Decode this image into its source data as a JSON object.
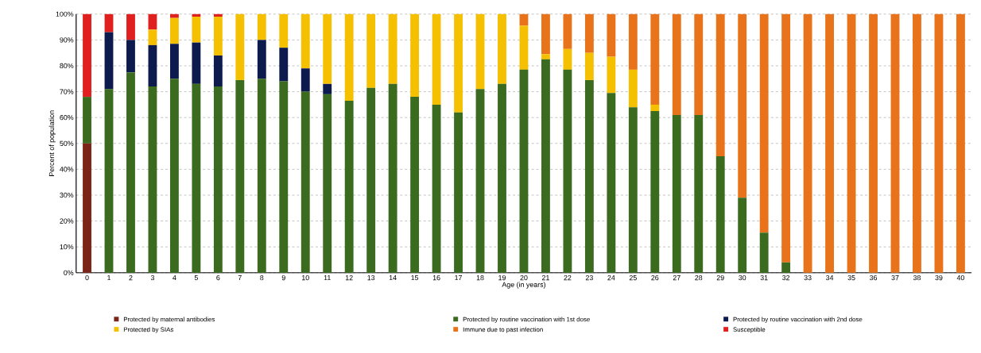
{
  "chart_data": {
    "type": "bar",
    "stacked": true,
    "xlabel": "Age (in years)",
    "ylabel": "Percent of population",
    "categories": [
      "0",
      "1",
      "2",
      "3",
      "4",
      "5",
      "6",
      "7",
      "8",
      "9",
      "10",
      "11",
      "12",
      "13",
      "14",
      "15",
      "16",
      "17",
      "18",
      "19",
      "20",
      "21",
      "22",
      "23",
      "24",
      "25",
      "26",
      "27",
      "28",
      "29",
      "30",
      "31",
      "32",
      "33",
      "34",
      "35",
      "36",
      "37",
      "38",
      "39",
      "40"
    ],
    "ylim": [
      0,
      100
    ],
    "yticks": [
      {
        "value": 0,
        "label": "0%"
      },
      {
        "value": 10,
        "label": "10%"
      },
      {
        "value": 20,
        "label": "20%"
      },
      {
        "value": 30,
        "label": "30%"
      },
      {
        "value": 40,
        "label": "40%"
      },
      {
        "value": 50,
        "label": "50%"
      },
      {
        "value": 60,
        "label": "60%"
      },
      {
        "value": 70,
        "label": "70%"
      },
      {
        "value": 80,
        "label": "80%"
      },
      {
        "value": 90,
        "label": "90%"
      },
      {
        "value": 100,
        "label": "100%"
      }
    ],
    "grid": "y",
    "legend": "bottom",
    "series": [
      {
        "name": "Protected by maternal antibodies",
        "color": "#7b2418",
        "values": [
          50,
          0,
          0,
          0,
          0,
          0,
          0,
          0,
          0,
          0,
          0,
          0,
          0,
          0,
          0,
          0,
          0,
          0,
          0,
          0,
          0,
          0,
          0,
          0,
          0,
          0,
          0,
          0,
          0,
          0,
          0,
          0,
          0,
          0,
          0,
          0,
          0,
          0,
          0,
          0,
          0
        ]
      },
      {
        "name": "Protected by routine vaccination with 1st dose",
        "color": "#3a6b1e",
        "values": [
          18,
          71,
          77.5,
          72,
          75,
          73,
          72,
          74.5,
          75,
          74,
          70,
          69,
          66.5,
          71.5,
          73,
          68,
          65,
          62,
          71,
          73,
          78.5,
          82.5,
          78.5,
          74.5,
          69.5,
          64,
          62.5,
          61,
          61,
          45,
          29,
          15.5,
          4,
          0,
          0,
          0,
          0,
          0,
          0,
          0,
          0
        ]
      },
      {
        "name": "Protected by routine vaccination with 2nd dose",
        "color": "#0d1a4d",
        "values": [
          0,
          22,
          12.5,
          16,
          13.5,
          16,
          12,
          0,
          15,
          13,
          9,
          4,
          0,
          0,
          0,
          0,
          0,
          0,
          0,
          0,
          0,
          0,
          0,
          0,
          0,
          0,
          0,
          0,
          0,
          0,
          0,
          0,
          0,
          0,
          0,
          0,
          0,
          0,
          0,
          0,
          0
        ]
      },
      {
        "name": "Protected by SIAs",
        "color": "#f5c000",
        "values": [
          0,
          0,
          0,
          6,
          10,
          10,
          15,
          25.5,
          10,
          13,
          21,
          27,
          33.5,
          28.5,
          27,
          32,
          35,
          38,
          29,
          27,
          17,
          2,
          8,
          10.5,
          14,
          14.5,
          2.5,
          0,
          0,
          0,
          0,
          0,
          0,
          0,
          0,
          0,
          0,
          0,
          0,
          0,
          0
        ]
      },
      {
        "name": "Immune due to past infection",
        "color": "#e8731a",
        "values": [
          0,
          0,
          0,
          0,
          0,
          0,
          0,
          0,
          0,
          0,
          0,
          0,
          0,
          0,
          0,
          0,
          0,
          0,
          0,
          0,
          4.5,
          15.5,
          13.5,
          15,
          16.5,
          21.5,
          35,
          39,
          39,
          55,
          71,
          84.5,
          96,
          100,
          100,
          100,
          100,
          100,
          100,
          100,
          100
        ]
      },
      {
        "name": "Susceptible",
        "color": "#e0201e",
        "values": [
          32,
          7,
          10,
          6,
          1.5,
          1,
          1,
          0,
          0,
          0,
          0,
          0,
          0,
          0,
          0,
          0,
          0,
          0,
          0,
          0,
          0,
          0,
          0,
          0,
          0,
          0,
          0,
          0,
          0,
          0,
          0,
          0,
          0,
          0,
          0,
          0,
          0,
          0,
          0,
          0,
          0
        ]
      }
    ]
  }
}
